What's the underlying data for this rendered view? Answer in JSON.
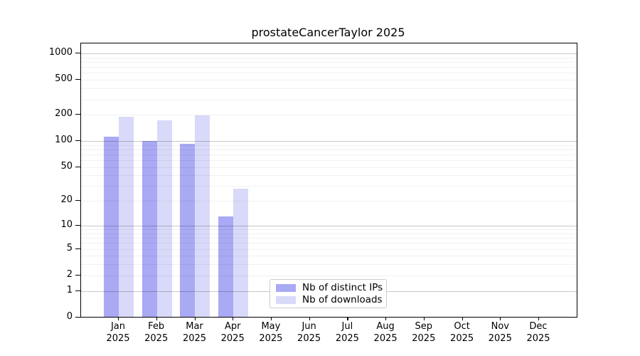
{
  "title": "prostateCancerTaylor 2025",
  "chart_data": {
    "type": "bar",
    "title": "prostateCancerTaylor 2025",
    "categories": [
      "Jan",
      "Feb",
      "Mar",
      "Apr",
      "May",
      "Jun",
      "Jul",
      "Aug",
      "Sep",
      "Oct",
      "Nov",
      "Dec"
    ],
    "category_year": "2025",
    "series": [
      {
        "name": "Nb of distinct IPs",
        "color": "#a9a9f4",
        "values": [
          112,
          100,
          93,
          13,
          0,
          0,
          0,
          0,
          0,
          0,
          0,
          0
        ]
      },
      {
        "name": "Nb of downloads",
        "color": "#d9d9f9",
        "values": [
          191,
          172,
          196,
          28,
          0,
          0,
          0,
          0,
          0,
          0,
          0,
          0
        ]
      }
    ],
    "yticks": [
      0,
      1,
      2,
      5,
      10,
      20,
      50,
      100,
      200,
      500,
      1000
    ],
    "ytick_labels": [
      "0",
      "1",
      "2",
      "5",
      "10",
      "20",
      "50",
      "100",
      "200",
      "500",
      "1000"
    ],
    "major_gridlines": [
      1,
      10,
      100,
      1000
    ],
    "scale": "log1p",
    "ylim": [
      0,
      1300
    ],
    "grid": "horizontal",
    "legend_position": "bottom-center",
    "xlabel": "",
    "ylabel": ""
  }
}
